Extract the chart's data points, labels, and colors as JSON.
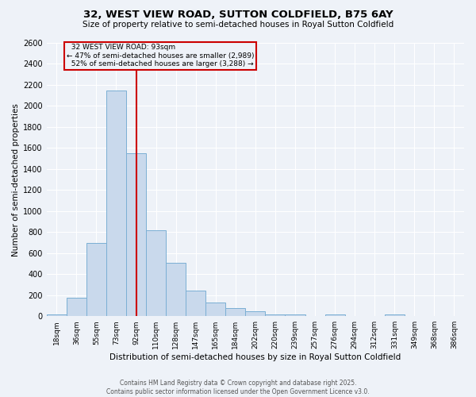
{
  "title": "32, WEST VIEW ROAD, SUTTON COLDFIELD, B75 6AY",
  "subtitle": "Size of property relative to semi-detached houses in Royal Sutton Coldfield",
  "xlabel": "Distribution of semi-detached houses by size in Royal Sutton Coldfield",
  "ylabel": "Number of semi-detached properties",
  "bin_labels": [
    "18sqm",
    "36sqm",
    "55sqm",
    "73sqm",
    "92sqm",
    "110sqm",
    "128sqm",
    "147sqm",
    "165sqm",
    "184sqm",
    "202sqm",
    "220sqm",
    "239sqm",
    "257sqm",
    "276sqm",
    "294sqm",
    "312sqm",
    "331sqm",
    "349sqm",
    "368sqm",
    "386sqm"
  ],
  "bar_values": [
    20,
    175,
    700,
    2150,
    1550,
    820,
    510,
    240,
    130,
    75,
    50,
    20,
    15,
    0,
    15,
    0,
    0,
    15,
    0,
    0,
    0
  ],
  "highlight_bin": 4,
  "pct_smaller": 47,
  "n_smaller": 2989,
  "pct_larger": 52,
  "n_larger": 3288,
  "bar_color": "#c9d9ec",
  "bar_edge_color": "#7bafd4",
  "highlight_line_color": "#cc0000",
  "box_edge_color": "#cc0000",
  "background_color": "#eef2f8",
  "ylim": [
    0,
    2600
  ],
  "yticks": [
    0,
    200,
    400,
    600,
    800,
    1000,
    1200,
    1400,
    1600,
    1800,
    2000,
    2200,
    2400,
    2600
  ],
  "footnote": "Contains HM Land Registry data © Crown copyright and database right 2025.\nContains public sector information licensed under the Open Government Licence v3.0.",
  "address_label": "32 WEST VIEW ROAD: 93sqm"
}
